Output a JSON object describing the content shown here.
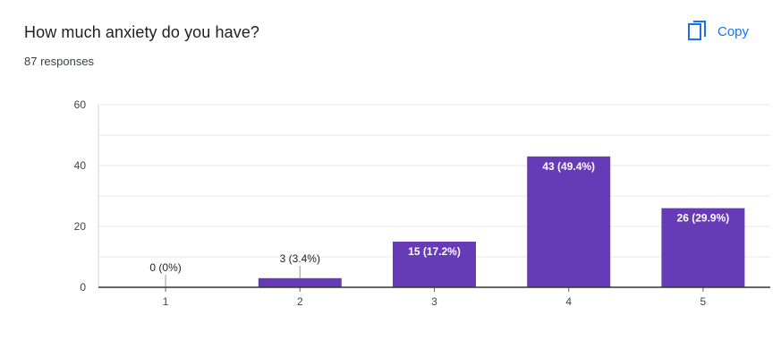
{
  "header": {
    "title": "How much anxiety do you have?",
    "responses": "87 responses",
    "copy_label": "Copy",
    "copy_icon": "copy-icon"
  },
  "colors": {
    "bar": "#673ab7",
    "accent": "#1a73e8",
    "grid": "#e8e8e8",
    "axis": "#333333"
  },
  "chart_data": {
    "type": "bar",
    "title": "How much anxiety do you have?",
    "xlabel": "",
    "ylabel": "",
    "categories": [
      "1",
      "2",
      "3",
      "4",
      "5"
    ],
    "values": [
      0,
      3,
      15,
      43,
      26
    ],
    "data_labels": [
      "0 (0%)",
      "3 (3.4%)",
      "15 (17.2%)",
      "43 (49.4%)",
      "26 (29.9%)"
    ],
    "ylim": [
      0,
      60
    ],
    "yticks": [
      0,
      20,
      40,
      60
    ],
    "grid": true
  }
}
